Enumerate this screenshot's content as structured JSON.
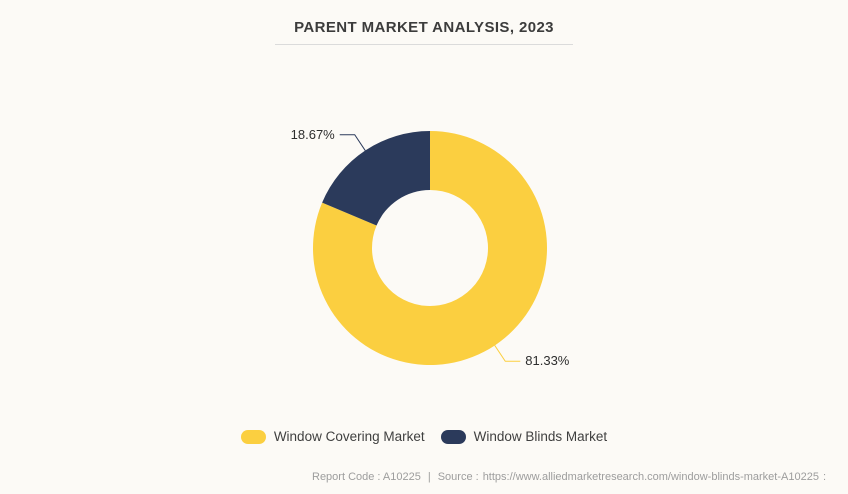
{
  "chart_data": {
    "type": "pie",
    "donut": true,
    "title": "PARENT MARKET ANALYSIS, 2023",
    "categories": [
      "Window Covering Market",
      "Window Blinds Market"
    ],
    "values": [
      81.33,
      18.67
    ],
    "labels": [
      "81.33%",
      "18.67%"
    ],
    "colors": [
      "#FBCF40",
      "#2B3A5B"
    ],
    "start_angle": 0,
    "direction": "clockwise",
    "legend_position": "bottom"
  },
  "footer": {
    "report_code_label": "Report Code : A10225",
    "separator": "|",
    "source_label": "Source :",
    "source_url": "https://www.alliedmarketresearch.com/window-blinds-market-A10225",
    "trailing_colon": ":"
  }
}
